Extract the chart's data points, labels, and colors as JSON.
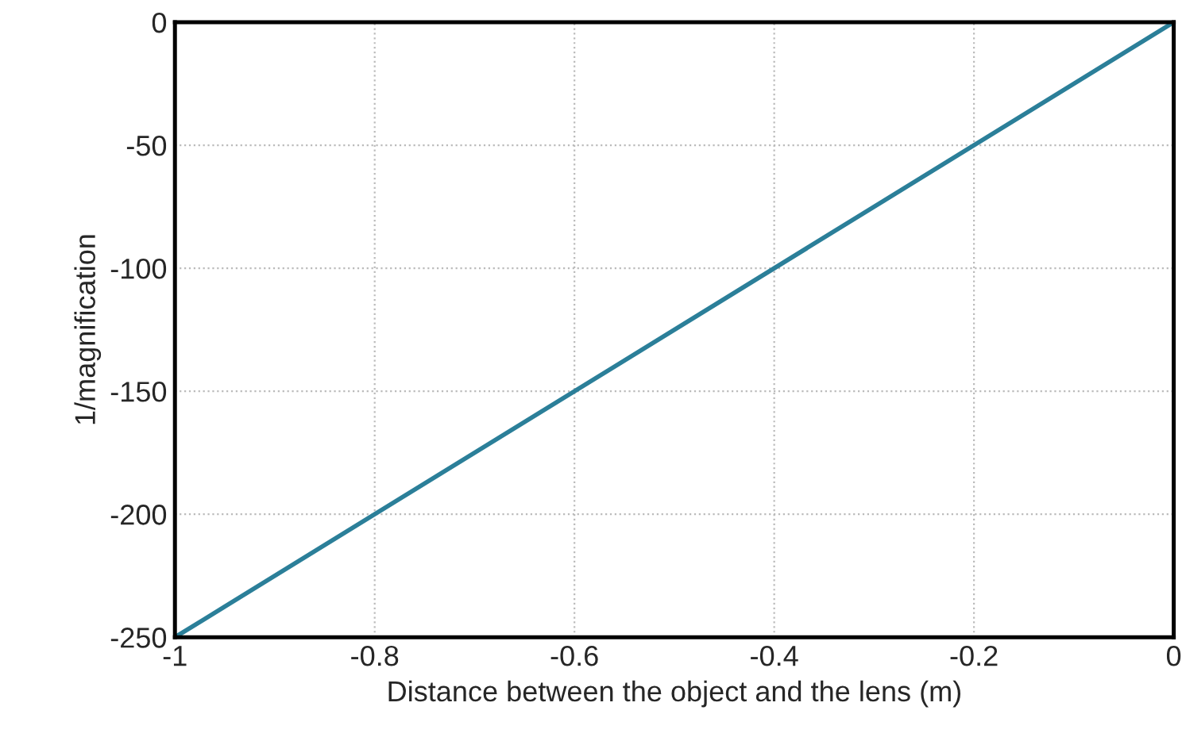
{
  "chart_data": {
    "type": "line",
    "xlabel": "Distance between the object and the lens (m)",
    "ylabel": "1/magnification",
    "x": [
      -1,
      0
    ],
    "series": [
      {
        "color": "#2b7f99",
        "values": [
          -250,
          0
        ]
      }
    ],
    "xlim": [
      -1,
      0
    ],
    "xticks": [
      -1,
      -0.8,
      -0.6,
      -0.4,
      -0.2,
      0
    ],
    "ylim": [
      -250,
      0
    ],
    "yticks": [
      -250,
      -200,
      -150,
      -100,
      -50,
      0
    ],
    "grid": true,
    "marker": "none",
    "line_style": "solid"
  }
}
